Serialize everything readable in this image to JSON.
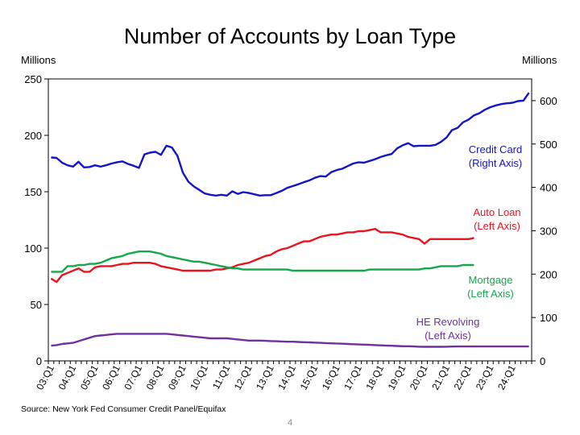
{
  "chart_data": {
    "type": "line",
    "title": "Number of Accounts by Loan Type",
    "ylabel_left": "Millions",
    "ylabel_right": "Millions",
    "ylim_left": [
      0,
      250
    ],
    "yticks_left": [
      0,
      50,
      100,
      150,
      200,
      250
    ],
    "ylim_right": [
      0,
      650
    ],
    "yticks_right": [
      0,
      100,
      200,
      300,
      400,
      500,
      600
    ],
    "x_start": "2003:Q1",
    "n_quarters": 88,
    "xtick_labels": [
      "03:Q1",
      "04:Q1",
      "05:Q1",
      "06:Q1",
      "07:Q1",
      "08:Q1",
      "09:Q1",
      "10:Q1",
      "11:Q1",
      "12:Q1",
      "13:Q1",
      "14:Q1",
      "15:Q1",
      "16:Q1",
      "17:Q1",
      "18:Q1",
      "19:Q1",
      "20:Q1",
      "21:Q1",
      "22:Q1",
      "23:Q1",
      "24:Q1"
    ],
    "grid": false,
    "series": [
      {
        "name": "Credit Card",
        "label_lines": [
          "Credit Card",
          "(Right Axis)"
        ],
        "axis": "right",
        "color": "#1414c8",
        "values": [
          469,
          468,
          457,
          451,
          448,
          459,
          446,
          447,
          451,
          448,
          451,
          455,
          458,
          460,
          454,
          450,
          445,
          476,
          480,
          482,
          475,
          496,
          492,
          473,
          434,
          413,
          402,
          394,
          386,
          383,
          381,
          383,
          381,
          391,
          385,
          389,
          387,
          384,
          381,
          382,
          382,
          387,
          392,
          399,
          403,
          407,
          412,
          416,
          422,
          426,
          425,
          435,
          440,
          443,
          449,
          455,
          458,
          457,
          461,
          465,
          470,
          474,
          477,
          490,
          497,
          502,
          495,
          496,
          496,
          496,
          498,
          505,
          515,
          532,
          537,
          550,
          556,
          566,
          571,
          579,
          585,
          589,
          592,
          594,
          595,
          599,
          600,
          618
        ]
      },
      {
        "name": "Auto Loan",
        "label_lines": [
          "Auto Loan",
          "(Left Axis)"
        ],
        "axis": "left",
        "color": "#e8141e",
        "values": [
          73,
          70,
          76,
          78,
          80,
          82,
          79,
          79,
          83,
          84,
          84,
          84,
          85,
          86,
          86,
          87,
          87,
          87,
          87,
          86,
          84,
          83,
          82,
          81,
          80,
          80,
          80,
          80,
          80,
          80,
          81,
          81,
          82,
          83,
          85,
          86,
          87,
          89,
          91,
          93,
          94,
          97,
          99,
          100,
          102,
          104,
          106,
          106,
          108,
          110,
          111,
          112,
          112,
          113,
          114,
          114,
          115,
          115,
          116,
          117,
          114,
          114,
          114,
          113,
          112,
          110,
          109,
          108,
          104,
          108,
          108,
          108,
          108,
          108,
          108,
          108,
          108,
          109
        ]
      },
      {
        "name": "Mortgage",
        "label_lines": [
          "Mortgage",
          "(Left Axis)"
        ],
        "axis": "left",
        "color": "#14a84a",
        "values": [
          79,
          79,
          79,
          84,
          84,
          85,
          85,
          86,
          86,
          87,
          89,
          91,
          92,
          93,
          95,
          96,
          97,
          97,
          97,
          96,
          95,
          93,
          92,
          91,
          90,
          89,
          88,
          88,
          87,
          86,
          85,
          84,
          83,
          82,
          82,
          81,
          81,
          81,
          81,
          81,
          81,
          81,
          81,
          81,
          80,
          80,
          80,
          80,
          80,
          80,
          80,
          80,
          80,
          80,
          80,
          80,
          80,
          80,
          81,
          81,
          81,
          81,
          81,
          81,
          81,
          81,
          81,
          81,
          82,
          82,
          83,
          84,
          84,
          84,
          84,
          85,
          85,
          85
        ]
      },
      {
        "name": "HE Revolving",
        "label_lines": [
          "HE Revolving",
          "(Left Axis)"
        ],
        "axis": "left",
        "color": "#7030a0",
        "values": [
          13.5,
          14,
          15,
          15.5,
          16,
          17.5,
          19,
          20.5,
          22,
          22.5,
          23,
          23.5,
          24,
          24,
          24,
          24,
          24,
          24,
          24,
          24,
          24,
          24,
          23.5,
          23,
          22.5,
          22,
          21.5,
          21,
          20.5,
          20,
          20,
          20,
          20,
          19.5,
          19,
          18.5,
          18,
          18,
          18,
          17.8,
          17.6,
          17.4,
          17.2,
          17,
          17,
          16.8,
          16.6,
          16.4,
          16.2,
          16,
          15.8,
          15.6,
          15.4,
          15.2,
          15,
          14.8,
          14.6,
          14.4,
          14.2,
          14,
          13.8,
          13.6,
          13.4,
          13.2,
          13,
          13,
          12.8,
          12.6,
          12.5,
          12.5,
          12.5,
          12.5,
          12.6,
          12.7,
          12.8,
          12.8,
          12.8,
          12.8,
          12.8,
          12.8,
          12.8,
          12.8,
          12.8,
          12.8,
          12.8,
          12.8,
          12.8,
          12.8
        ]
      }
    ],
    "source": "Source: New York Fed Consumer Credit Panel/Equifax"
  },
  "page_number": "4"
}
